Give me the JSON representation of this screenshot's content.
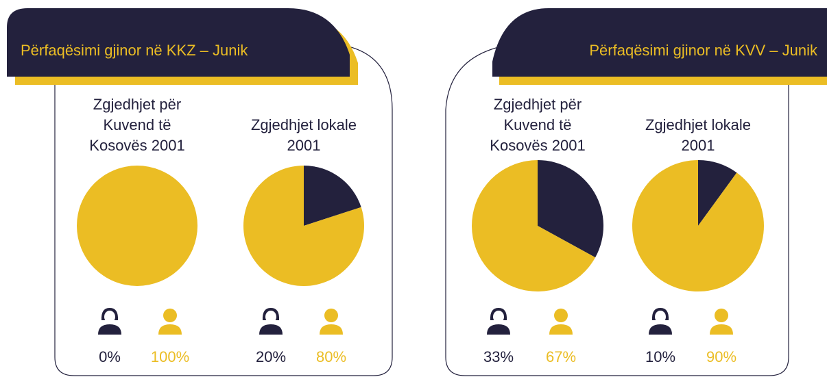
{
  "panels": [
    {
      "title": "Përfaqësimi gjinor në KKZ – Junik"
    },
    {
      "title": "Përfaqësimi gjinor në KVV – Junik"
    }
  ],
  "chart_data": [
    {
      "type": "pie",
      "title": "Zgjedhjet për Kuvend të Kosovës 2001",
      "values": [
        0,
        100
      ],
      "value_labels": [
        "0%",
        "100%"
      ],
      "colors": [
        "#23213d",
        "#ebbd24"
      ]
    },
    {
      "type": "pie",
      "title": "Zgjedhjet lokale 2001",
      "values": [
        20,
        80
      ],
      "value_labels": [
        "20%",
        "80%"
      ],
      "colors": [
        "#23213d",
        "#ebbd24"
      ]
    },
    {
      "type": "pie",
      "title": "Zgjedhjet për Kuvend të Kosovës 2001",
      "values": [
        33,
        67
      ],
      "value_labels": [
        "33%",
        "67%"
      ],
      "colors": [
        "#23213d",
        "#ebbd24"
      ]
    },
    {
      "type": "pie",
      "title": "Zgjedhjet lokale 2001",
      "values": [
        10,
        90
      ],
      "value_labels": [
        "10%",
        "90%"
      ],
      "colors": [
        "#23213d",
        "#ebbd24"
      ]
    }
  ]
}
